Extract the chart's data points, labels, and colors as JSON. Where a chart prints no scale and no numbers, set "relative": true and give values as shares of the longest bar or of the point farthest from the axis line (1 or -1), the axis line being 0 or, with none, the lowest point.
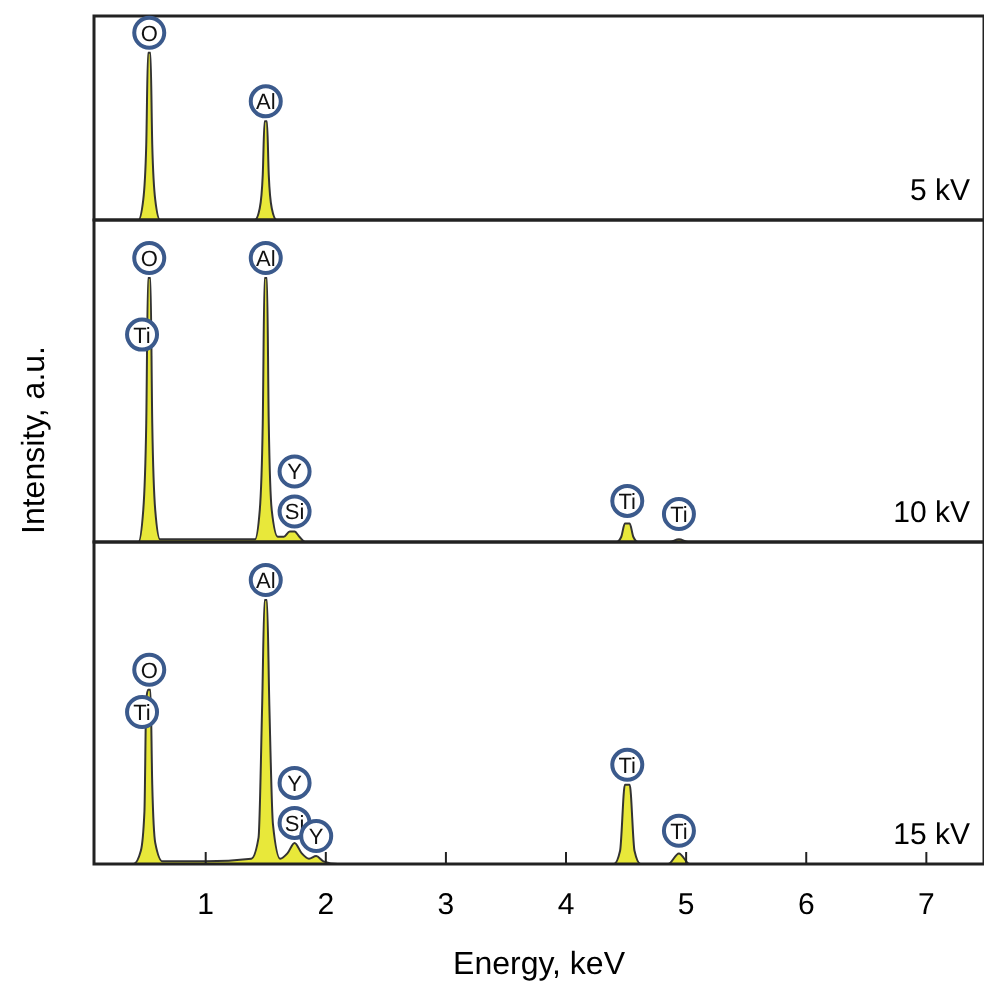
{
  "chart_data": [
    {
      "type": "area",
      "relative": true,
      "color": "#e8e83a",
      "xlim": [
        0.07,
        7.48
      ],
      "tick_labels": false,
      "x": [
        0.1,
        0.44,
        0.48,
        0.505,
        0.52,
        0.54,
        0.555,
        0.58,
        0.62,
        1.41,
        1.45,
        1.475,
        1.49,
        1.51,
        1.525,
        1.55,
        1.59,
        7.45
      ],
      "values": [
        0,
        0,
        0.12,
        0.45,
        1,
        1,
        0.45,
        0.12,
        0,
        0,
        0.07,
        0.27,
        0.59,
        0.59,
        0.27,
        0.07,
        0,
        0
      ],
      "annotations": [
        "5 kV",
        {
          "text": "O",
          "x": 0.53,
          "y": 1.0
        },
        {
          "text": "Al",
          "x": 1.5,
          "y": 0.59
        }
      ]
    },
    {
      "type": "area",
      "relative": true,
      "color": "#e8e83a",
      "xlim": [
        0.07,
        7.48
      ],
      "tick_labels": false,
      "ylabel": "Intensity, a.u.",
      "x": [
        0.1,
        0.44,
        0.48,
        0.505,
        0.52,
        0.54,
        0.555,
        0.58,
        0.62,
        1.41,
        1.45,
        1.475,
        1.49,
        1.51,
        1.525,
        1.55,
        1.6,
        1.65,
        1.7,
        1.74,
        1.78,
        1.83,
        4.42,
        4.46,
        4.49,
        4.53,
        4.56,
        4.6,
        4.86,
        4.94,
        5.02,
        7.45
      ],
      "values": [
        0,
        0,
        0.12,
        0.45,
        1,
        1,
        0.45,
        0.12,
        0.01,
        0.01,
        0.12,
        0.45,
        1,
        1,
        0.45,
        0.12,
        0.02,
        0.02,
        0.04,
        0.04,
        0.02,
        0,
        0,
        0.02,
        0.07,
        0.07,
        0.02,
        0,
        0,
        0.01,
        0,
        0
      ],
      "annotations": [
        "10 kV",
        {
          "text": "O",
          "x": 0.53,
          "y": 1.0
        },
        {
          "text": "Ti",
          "x": 0.47,
          "y": 0.71
        },
        {
          "text": "Al",
          "x": 1.5,
          "y": 1.0
        },
        {
          "text": "Si",
          "x": 1.74,
          "y": 0.04
        },
        {
          "text": "Y",
          "x": 1.74,
          "y": 0.04
        },
        {
          "text": "Ti",
          "x": 4.51,
          "y": 0.08
        },
        {
          "text": "Ti",
          "x": 4.94,
          "y": 0.03
        }
      ]
    },
    {
      "type": "area",
      "relative": true,
      "color": "#e8e83a",
      "xlim": [
        0.07,
        7.48
      ],
      "xticks": [
        1,
        2,
        3,
        4,
        5,
        6,
        7
      ],
      "tick_labels": "x",
      "xlabel": "Energy, keV",
      "x": [
        0.1,
        0.4,
        0.46,
        0.49,
        0.505,
        0.52,
        0.54,
        0.555,
        0.58,
        0.64,
        1.0,
        1.38,
        1.44,
        1.47,
        1.49,
        1.51,
        1.53,
        1.56,
        1.62,
        1.68,
        1.74,
        1.8,
        1.86,
        1.92,
        1.98,
        2.1,
        4.4,
        4.45,
        4.49,
        4.53,
        4.57,
        4.62,
        4.85,
        4.94,
        5.03,
        7.45
      ],
      "values": [
        0,
        0,
        0.05,
        0.2,
        0.62,
        0.66,
        0.66,
        0.3,
        0.08,
        0.01,
        0.01,
        0.02,
        0.1,
        0.6,
        1,
        1,
        0.6,
        0.15,
        0.02,
        0.04,
        0.08,
        0.04,
        0.02,
        0.03,
        0.01,
        0,
        0,
        0.05,
        0.3,
        0.3,
        0.05,
        0,
        0,
        0.04,
        0,
        0
      ],
      "annotations": [
        "15 kV",
        {
          "text": "Al",
          "x": 1.5,
          "y": 1.0
        },
        {
          "text": "O",
          "x": 0.53,
          "y": 0.66
        },
        {
          "text": "Ti",
          "x": 0.47,
          "y": 0.5
        },
        {
          "text": "Si",
          "x": 1.74,
          "y": 0.08
        },
        {
          "text": "Y",
          "x": 1.74,
          "y": 0.08
        },
        {
          "text": "Y",
          "x": 1.92,
          "y": 0.03
        },
        {
          "text": "Ti",
          "x": 4.51,
          "y": 0.3
        },
        {
          "text": "Ti",
          "x": 4.94,
          "y": 0.05
        }
      ]
    }
  ]
}
